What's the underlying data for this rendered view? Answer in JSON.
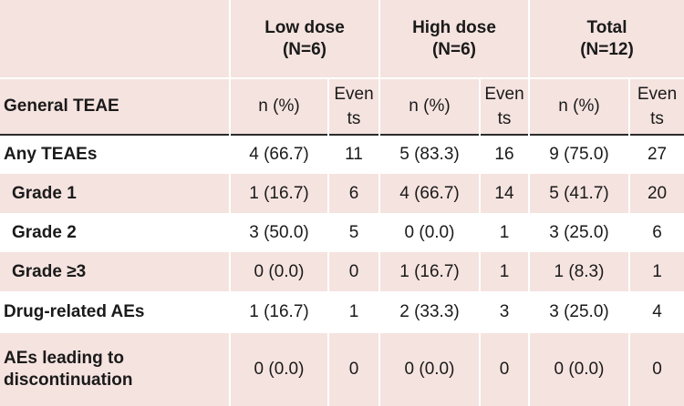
{
  "header": {
    "groups": [
      {
        "label": "Low dose",
        "n": "(N=6)"
      },
      {
        "label": "High dose",
        "n": "(N=6)"
      },
      {
        "label": "Total",
        "n": "(N=12)"
      }
    ],
    "row_label": "General TEAE",
    "col_npct": "n (%)",
    "col_events_1": "Even",
    "col_events_2": "ts"
  },
  "rows": [
    {
      "label": "Any TEAEs",
      "cells": [
        "4 (66.7)",
        "11",
        "5 (83.3)",
        "16",
        "9 (75.0)",
        "27"
      ]
    },
    {
      "label": "Grade 1",
      "cells": [
        "1 (16.7)",
        "6",
        "4 (66.7)",
        "14",
        "5 (41.7)",
        "20"
      ]
    },
    {
      "label": "Grade 2",
      "cells": [
        "3 (50.0)",
        "5",
        "0 (0.0)",
        "1",
        "3 (25.0)",
        "6"
      ]
    },
    {
      "label": "Grade ≥3",
      "cells": [
        "0 (0.0)",
        "0",
        "1 (16.7)",
        "1",
        "1 (8.3)",
        "1"
      ]
    },
    {
      "label": "Drug-related AEs",
      "cells": [
        "1 (16.7)",
        "1",
        "2 (33.3)",
        "3",
        "3 (25.0)",
        "4"
      ]
    },
    {
      "label_line1": "AEs leading to",
      "label_line2": "discontinuation",
      "cells": [
        "0 (0.0)",
        "0",
        "0 (0.0)",
        "0",
        "0 (0.0)",
        "0"
      ]
    }
  ],
  "colors": {
    "shade": "#f5e3df",
    "divider": "#2b2b2b"
  }
}
